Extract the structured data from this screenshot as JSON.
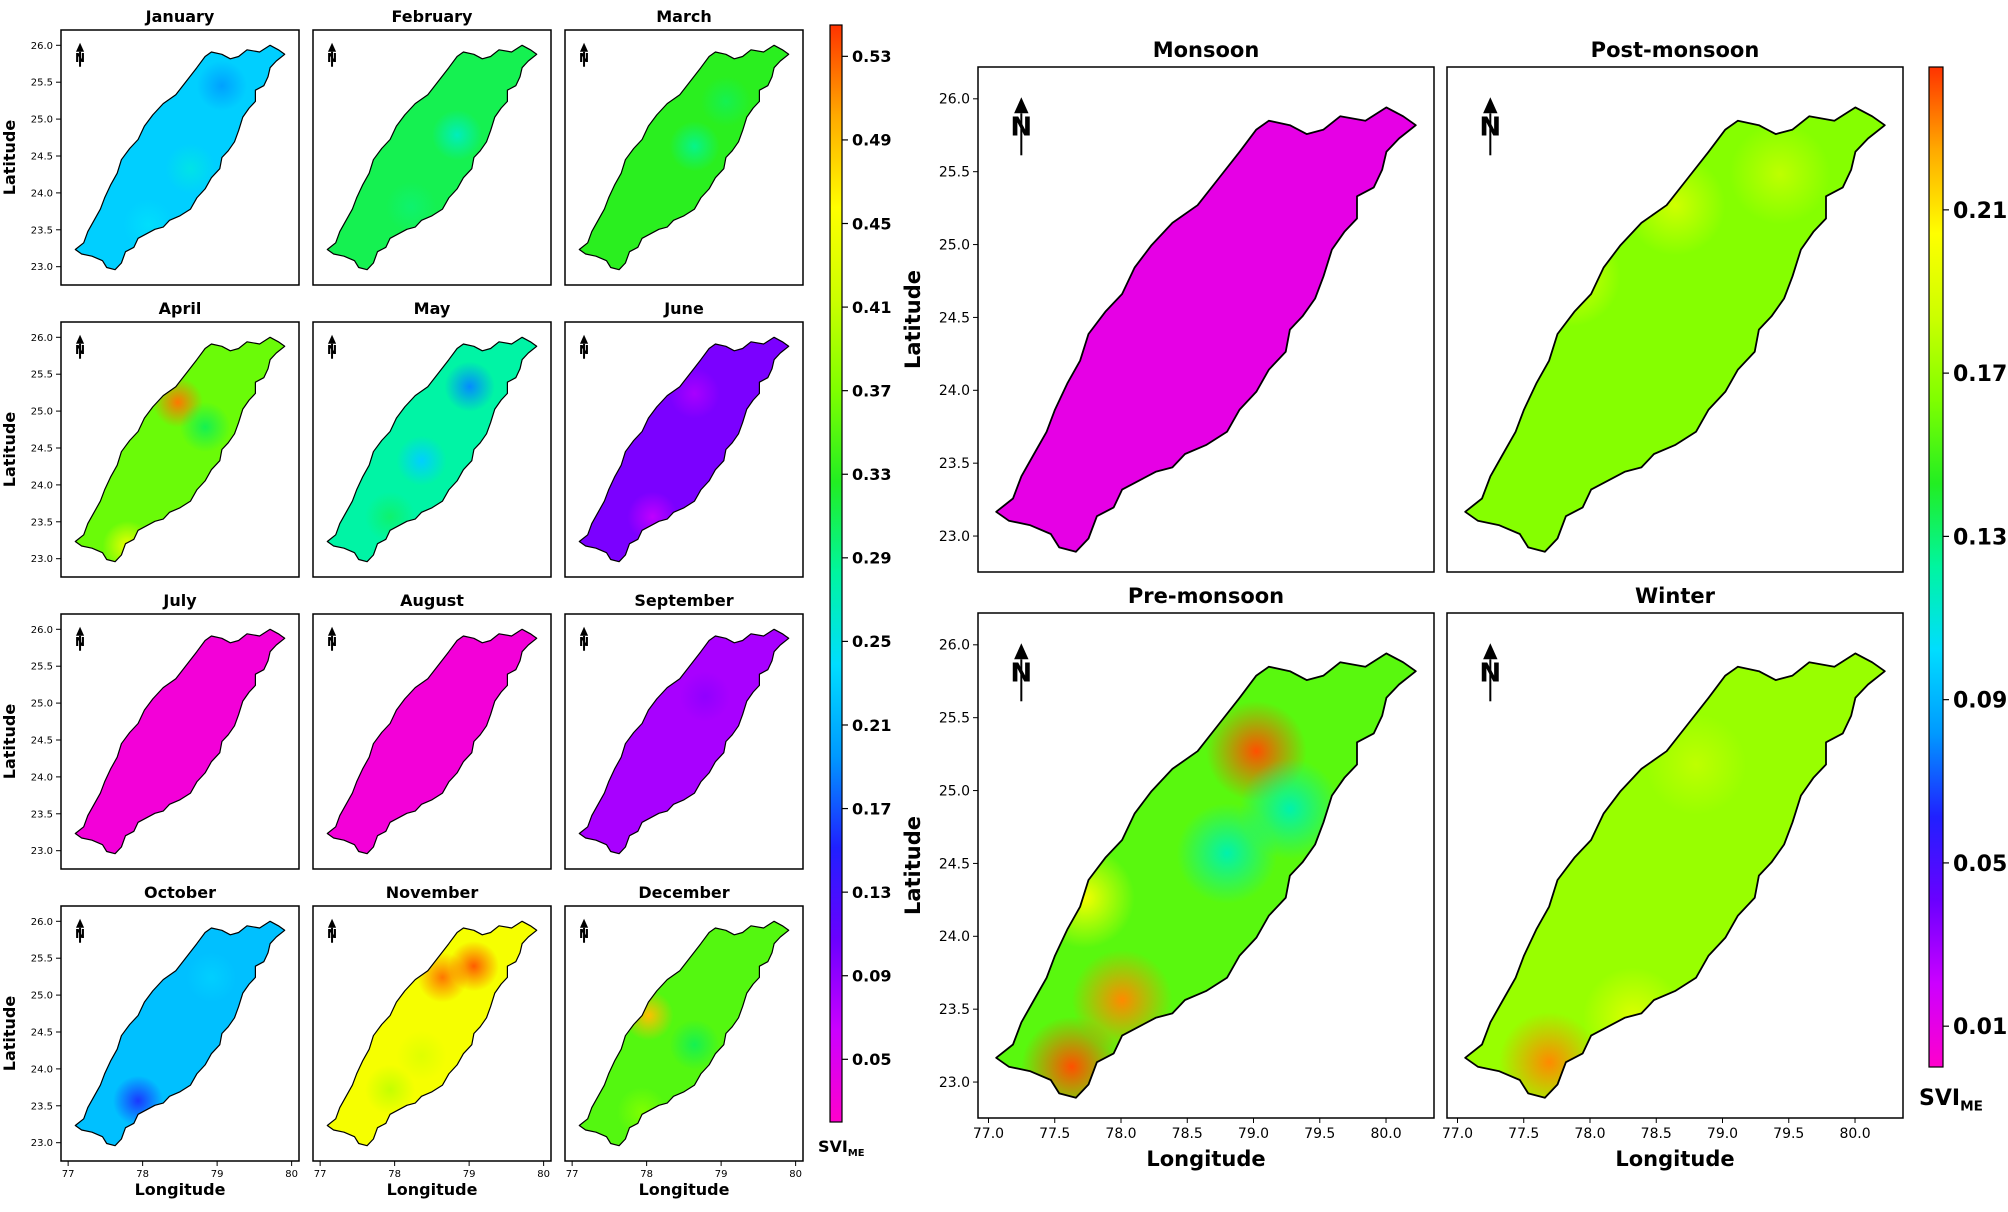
{
  "monthly": {
    "ylabel": "Latitude",
    "xlabel": "Longitude",
    "x_ticks": [
      "77",
      "78",
      "79",
      "80"
    ],
    "y_ticks": [
      "26.0",
      "25.5",
      "25.0",
      "24.5",
      "24.0",
      "23.5",
      "23.0"
    ],
    "north_label": "N",
    "panels": [
      {
        "title": "January",
        "base": 0.23,
        "spots": [
          [
            0.7,
            0.18,
            0.2
          ],
          [
            0.55,
            0.55,
            0.25
          ],
          [
            0.35,
            0.8,
            0.24
          ]
        ]
      },
      {
        "title": "February",
        "base": 0.31,
        "spots": [
          [
            0.62,
            0.4,
            0.27
          ],
          [
            0.4,
            0.72,
            0.3
          ]
        ]
      },
      {
        "title": "March",
        "base": 0.33,
        "spots": [
          [
            0.55,
            0.45,
            0.29
          ],
          [
            0.7,
            0.25,
            0.31
          ]
        ]
      },
      {
        "title": "April",
        "base": 0.36,
        "spots": [
          [
            0.49,
            0.29,
            0.52
          ],
          [
            0.25,
            0.93,
            0.44
          ],
          [
            0.62,
            0.4,
            0.31
          ]
        ]
      },
      {
        "title": "May",
        "base": 0.28,
        "spots": [
          [
            0.68,
            0.22,
            0.19
          ],
          [
            0.45,
            0.55,
            0.23
          ],
          [
            0.3,
            0.8,
            0.3
          ]
        ]
      },
      {
        "title": "June",
        "base": 0.1,
        "spots": [
          [
            0.55,
            0.25,
            0.08
          ],
          [
            0.35,
            0.8,
            0.07
          ]
        ]
      },
      {
        "title": "July",
        "base": 0.03,
        "spots": []
      },
      {
        "title": "August",
        "base": 0.03,
        "spots": []
      },
      {
        "title": "September",
        "base": 0.08,
        "spots": [
          [
            0.6,
            0.3,
            0.09
          ]
        ]
      },
      {
        "title": "October",
        "base": 0.22,
        "spots": [
          [
            0.3,
            0.8,
            0.16
          ],
          [
            0.65,
            0.25,
            0.23
          ]
        ]
      },
      {
        "title": "November",
        "base": 0.45,
        "spots": [
          [
            0.55,
            0.25,
            0.52
          ],
          [
            0.7,
            0.2,
            0.53
          ],
          [
            0.3,
            0.75,
            0.41
          ],
          [
            0.45,
            0.6,
            0.43
          ]
        ]
      },
      {
        "title": "December",
        "base": 0.35,
        "spots": [
          [
            0.33,
            0.42,
            0.49
          ],
          [
            0.55,
            0.55,
            0.31
          ],
          [
            0.3,
            0.85,
            0.37
          ]
        ]
      }
    ],
    "colorbar": {
      "label": "SVI",
      "label_sub": "ME",
      "vmin": 0.02,
      "vmax": 0.545,
      "ticks": [
        "0.53",
        "0.49",
        "0.45",
        "0.41",
        "0.37",
        "0.33",
        "0.29",
        "0.25",
        "0.21",
        "0.17",
        "0.13",
        "0.09",
        "0.05"
      ],
      "colors": [
        "#ff00cc",
        "#cc00ff",
        "#6a00ff",
        "#2020ff",
        "#0099ff",
        "#00ddff",
        "#00f5a0",
        "#22ee22",
        "#7fff00",
        "#ccff00",
        "#ffff00",
        "#ffaa00",
        "#ff3300"
      ]
    }
  },
  "seasonal": {
    "ylabel": "Latitude",
    "xlabel": "Longitude",
    "x_ticks": [
      "77.0",
      "77.5",
      "78.0",
      "78.5",
      "79.0",
      "79.5",
      "80.0"
    ],
    "y_ticks": [
      "26.0",
      "25.5",
      "25.0",
      "24.5",
      "24.0",
      "23.5",
      "23.0"
    ],
    "north_label": "N",
    "panels": [
      {
        "title": "Monsoon",
        "base": 0.01,
        "spots": []
      },
      {
        "title": "Post-monsoon",
        "base": 0.165,
        "spots": [
          [
            0.25,
            0.38,
            0.19
          ],
          [
            0.5,
            0.22,
            0.185
          ],
          [
            0.75,
            0.15,
            0.18
          ]
        ]
      },
      {
        "title": "Pre-monsoon",
        "base": 0.155,
        "spots": [
          [
            0.62,
            0.22,
            0.24
          ],
          [
            0.21,
            0.55,
            0.2
          ],
          [
            0.3,
            0.78,
            0.23
          ],
          [
            0.18,
            0.93,
            0.24
          ],
          [
            0.55,
            0.45,
            0.12
          ],
          [
            0.7,
            0.35,
            0.12
          ]
        ]
      },
      {
        "title": "Winter",
        "base": 0.17,
        "spots": [
          [
            0.2,
            0.92,
            0.23
          ],
          [
            0.4,
            0.82,
            0.19
          ],
          [
            0.55,
            0.25,
            0.18
          ]
        ]
      }
    ],
    "colorbar": {
      "label": "SVI",
      "label_sub": "ME",
      "vmin": 0.0,
      "vmax": 0.245,
      "ticks": [
        "0.21",
        "0.17",
        "0.13",
        "0.09",
        "0.05",
        "0.01"
      ],
      "colors": [
        "#ff00cc",
        "#cc00ff",
        "#6a00ff",
        "#2020ff",
        "#0099ff",
        "#00ddff",
        "#00f5a0",
        "#22ee22",
        "#7fff00",
        "#ccff00",
        "#ffff00",
        "#ffaa00",
        "#ff3300"
      ]
    }
  }
}
